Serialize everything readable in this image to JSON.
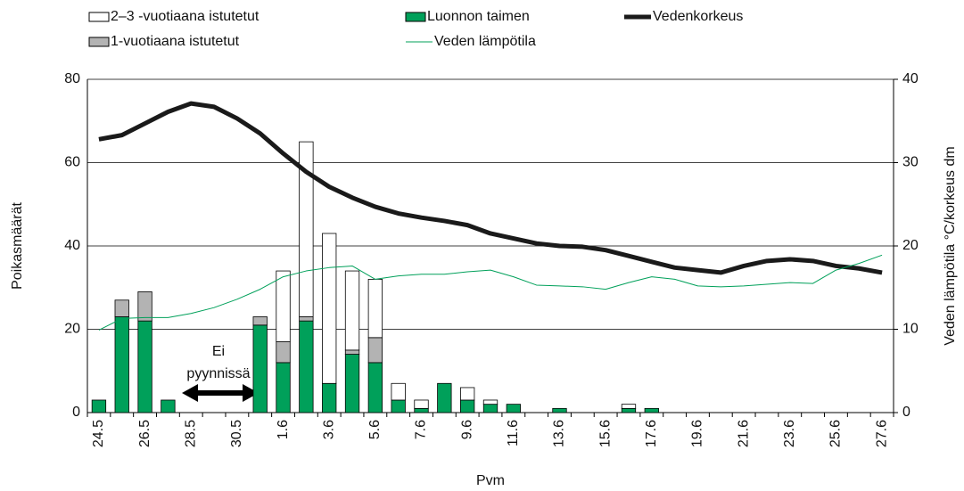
{
  "chart_data": {
    "type": "bar",
    "categories": [
      "24.5",
      null,
      "26.5",
      null,
      "28.5",
      null,
      "30.5",
      null,
      "1.6",
      null,
      "3.6",
      null,
      "5.6",
      null,
      "7.6",
      null,
      "9.6",
      null,
      "11.6",
      null,
      "13.6",
      null,
      "15.6",
      null,
      "17.6",
      null,
      "19.6",
      null,
      "21.6",
      null,
      "23.6",
      null,
      "25.6",
      null,
      "27.6"
    ],
    "series": [
      {
        "name": "Luonnon taimen",
        "type": "bar",
        "color": "#00a05a",
        "values": [
          3,
          23,
          22,
          3,
          null,
          null,
          null,
          21,
          12,
          22,
          7,
          14,
          12,
          3,
          1,
          7,
          3,
          2,
          2,
          0,
          1,
          0,
          0,
          1,
          1,
          0,
          0,
          0,
          0,
          0,
          0,
          0,
          0,
          0,
          0
        ]
      },
      {
        "name": "1-vuotiaana istutetut",
        "type": "bar",
        "color": "#b3b3b3",
        "values": [
          0,
          4,
          7,
          0,
          null,
          null,
          null,
          2,
          5,
          1,
          0,
          1,
          6,
          0,
          0,
          0,
          0,
          0,
          0,
          0,
          0,
          0,
          0,
          0,
          0,
          0,
          0,
          0,
          0,
          0,
          0,
          0,
          0,
          0,
          0
        ]
      },
      {
        "name": "2–3 -vuotiaana istutetut",
        "type": "bar",
        "color": "#ffffff",
        "values": [
          0,
          0,
          0,
          0,
          null,
          null,
          null,
          0,
          17,
          42,
          36,
          19,
          14,
          4,
          2,
          0,
          3,
          1,
          0,
          0,
          0,
          0,
          0,
          1,
          0,
          0,
          0,
          0,
          0,
          0,
          0,
          0,
          0,
          0,
          0
        ]
      },
      {
        "name": "Vedenkorkeus",
        "type": "line",
        "axis": "y2",
        "color": "#1a1a1a",
        "values": [
          32.8,
          33.3,
          34.7,
          36.1,
          37.1,
          36.7,
          35.3,
          33.5,
          31.1,
          28.9,
          27.1,
          25.8,
          24.7,
          23.9,
          23.4,
          23.0,
          22.5,
          21.5,
          20.9,
          20.3,
          20.0,
          19.9,
          19.5,
          18.8,
          18.1,
          17.4,
          17.1,
          16.8,
          17.6,
          18.2,
          18.4,
          18.2,
          17.6,
          17.3,
          16.8
        ]
      },
      {
        "name": "Veden lämpötila",
        "type": "line",
        "axis": "y2",
        "color": "#00a05a",
        "values": [
          9.9,
          11.3,
          11.4,
          11.4,
          11.9,
          12.6,
          13.6,
          14.8,
          16.3,
          17.0,
          17.4,
          17.6,
          16.0,
          16.4,
          16.6,
          16.6,
          16.9,
          17.1,
          16.3,
          15.3,
          15.2,
          15.1,
          14.8,
          15.6,
          16.3,
          16.0,
          15.2,
          15.1,
          15.2,
          15.4,
          15.6,
          15.5,
          17.1,
          17.9,
          18.9
        ]
      }
    ],
    "ylim": [
      0,
      80
    ],
    "yticks": [
      0,
      20,
      40,
      60,
      80
    ],
    "y2lim": [
      0,
      40
    ],
    "y2ticks": [
      0,
      10,
      20,
      30,
      40
    ],
    "ylabel": "Poikasmäärät",
    "y2label": "Veden lämpötila °C/korkeus dm",
    "xlabel": "Pvm",
    "annotation": [
      "Ei",
      "pyynnissä"
    ],
    "grid": true
  }
}
